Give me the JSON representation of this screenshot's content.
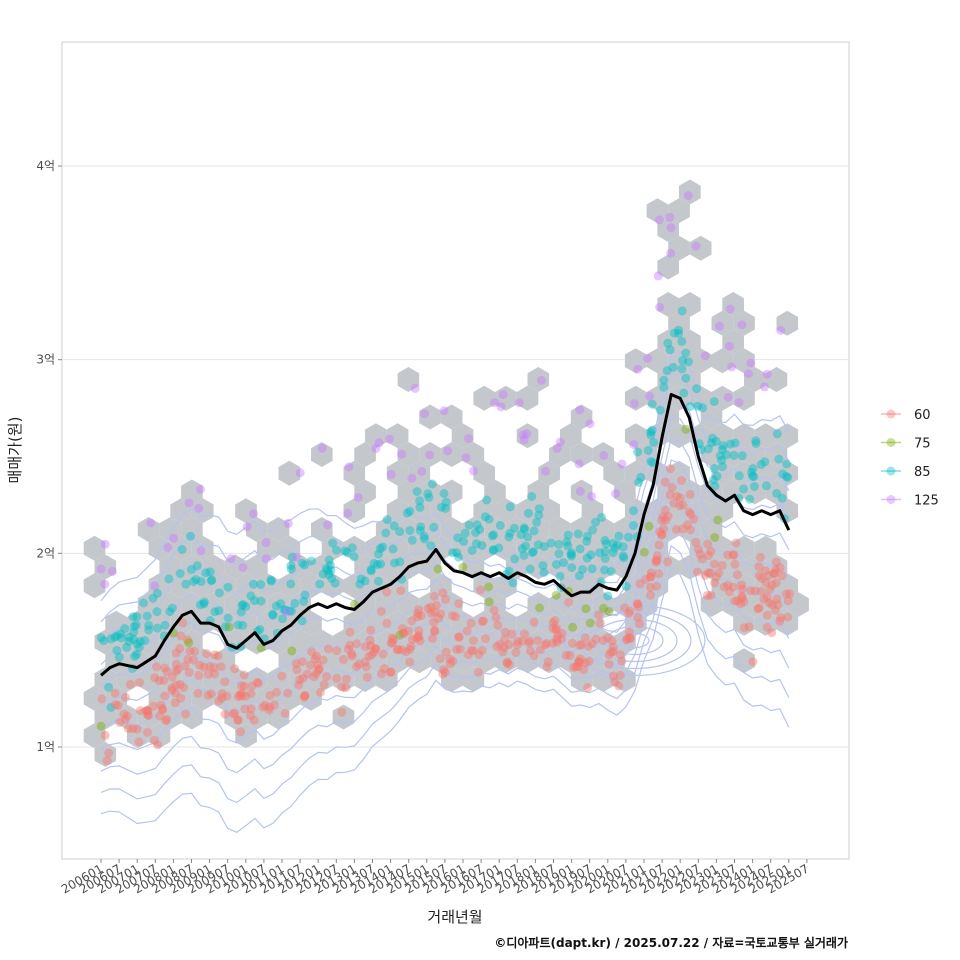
{
  "chart_data": {
    "type": "scatter",
    "xlabel": "거래년월",
    "ylabel": "매매가(원)",
    "caption": "©디아파트(dapt.kr) / 2025.07.22 / 자료=국토교통부 실거래가",
    "ylim": [
      0.45,
      4.65
    ],
    "y_ticks": [
      {
        "value": 1,
        "label": "1억"
      },
      {
        "value": 2,
        "label": "2억"
      },
      {
        "value": 3,
        "label": "3억"
      },
      {
        "value": 4,
        "label": "4억"
      }
    ],
    "x_ticks": [
      "200601",
      "200607",
      "200701",
      "200707",
      "200801",
      "200807",
      "200901",
      "200907",
      "201001",
      "201007",
      "201101",
      "201107",
      "201201",
      "201207",
      "201301",
      "201307",
      "201401",
      "201407",
      "201501",
      "201507",
      "201601",
      "201607",
      "201701",
      "201707",
      "201801",
      "201807",
      "201901",
      "201907",
      "202001",
      "202007",
      "202101",
      "202107",
      "202201",
      "202207",
      "202301",
      "202307",
      "202401",
      "202407",
      "202501",
      "202507"
    ],
    "legend": [
      {
        "name": "60",
        "color": "#F8766D"
      },
      {
        "name": "75",
        "color": "#7CAE00"
      },
      {
        "name": "85",
        "color": "#00BFC4"
      },
      {
        "name": "125",
        "color": "#C77CFF"
      }
    ],
    "trend_line": {
      "color": "#000000",
      "points": [
        [
          0,
          1.37
        ],
        [
          0.5,
          1.41
        ],
        [
          1,
          1.43
        ],
        [
          1.5,
          1.42
        ],
        [
          2,
          1.41
        ],
        [
          2.5,
          1.44
        ],
        [
          3,
          1.47
        ],
        [
          3.5,
          1.55
        ],
        [
          4,
          1.62
        ],
        [
          4.5,
          1.68
        ],
        [
          5,
          1.7
        ],
        [
          5.5,
          1.64
        ],
        [
          6,
          1.64
        ],
        [
          6.5,
          1.62
        ],
        [
          7,
          1.53
        ],
        [
          7.5,
          1.51
        ],
        [
          8,
          1.55
        ],
        [
          8.5,
          1.59
        ],
        [
          9,
          1.53
        ],
        [
          9.5,
          1.55
        ],
        [
          10,
          1.6
        ],
        [
          10.5,
          1.63
        ],
        [
          11,
          1.68
        ],
        [
          11.5,
          1.72
        ],
        [
          12,
          1.74
        ],
        [
          12.5,
          1.72
        ],
        [
          13,
          1.74
        ],
        [
          13.5,
          1.72
        ],
        [
          14,
          1.71
        ],
        [
          14.5,
          1.75
        ],
        [
          15,
          1.8
        ],
        [
          15.5,
          1.82
        ],
        [
          16,
          1.84
        ],
        [
          16.5,
          1.88
        ],
        [
          17,
          1.93
        ],
        [
          17.5,
          1.95
        ],
        [
          18,
          1.96
        ],
        [
          18.5,
          2.02
        ],
        [
          19,
          1.95
        ],
        [
          19.5,
          1.91
        ],
        [
          20,
          1.9
        ],
        [
          20.5,
          1.88
        ],
        [
          21,
          1.9
        ],
        [
          21.5,
          1.88
        ],
        [
          22,
          1.9
        ],
        [
          22.5,
          1.87
        ],
        [
          23,
          1.9
        ],
        [
          23.5,
          1.88
        ],
        [
          24,
          1.85
        ],
        [
          24.5,
          1.84
        ],
        [
          25,
          1.86
        ],
        [
          25.5,
          1.82
        ],
        [
          26,
          1.78
        ],
        [
          26.5,
          1.8
        ],
        [
          27,
          1.8
        ],
        [
          27.5,
          1.84
        ],
        [
          28,
          1.82
        ],
        [
          28.5,
          1.81
        ],
        [
          29,
          1.88
        ],
        [
          29.5,
          2.0
        ],
        [
          30,
          2.2
        ],
        [
          30.5,
          2.35
        ],
        [
          31,
          2.6
        ],
        [
          31.5,
          2.82
        ],
        [
          32,
          2.8
        ],
        [
          32.5,
          2.7
        ],
        [
          33,
          2.5
        ],
        [
          33.5,
          2.35
        ],
        [
          34,
          2.3
        ],
        [
          34.5,
          2.27
        ],
        [
          35,
          2.3
        ],
        [
          35.5,
          2.22
        ],
        [
          36,
          2.2
        ],
        [
          36.5,
          2.22
        ],
        [
          37,
          2.2
        ],
        [
          37.5,
          2.22
        ],
        [
          38,
          2.12
        ]
      ]
    },
    "density_center": {
      "x": 29.5,
      "y": 1.55
    }
  }
}
